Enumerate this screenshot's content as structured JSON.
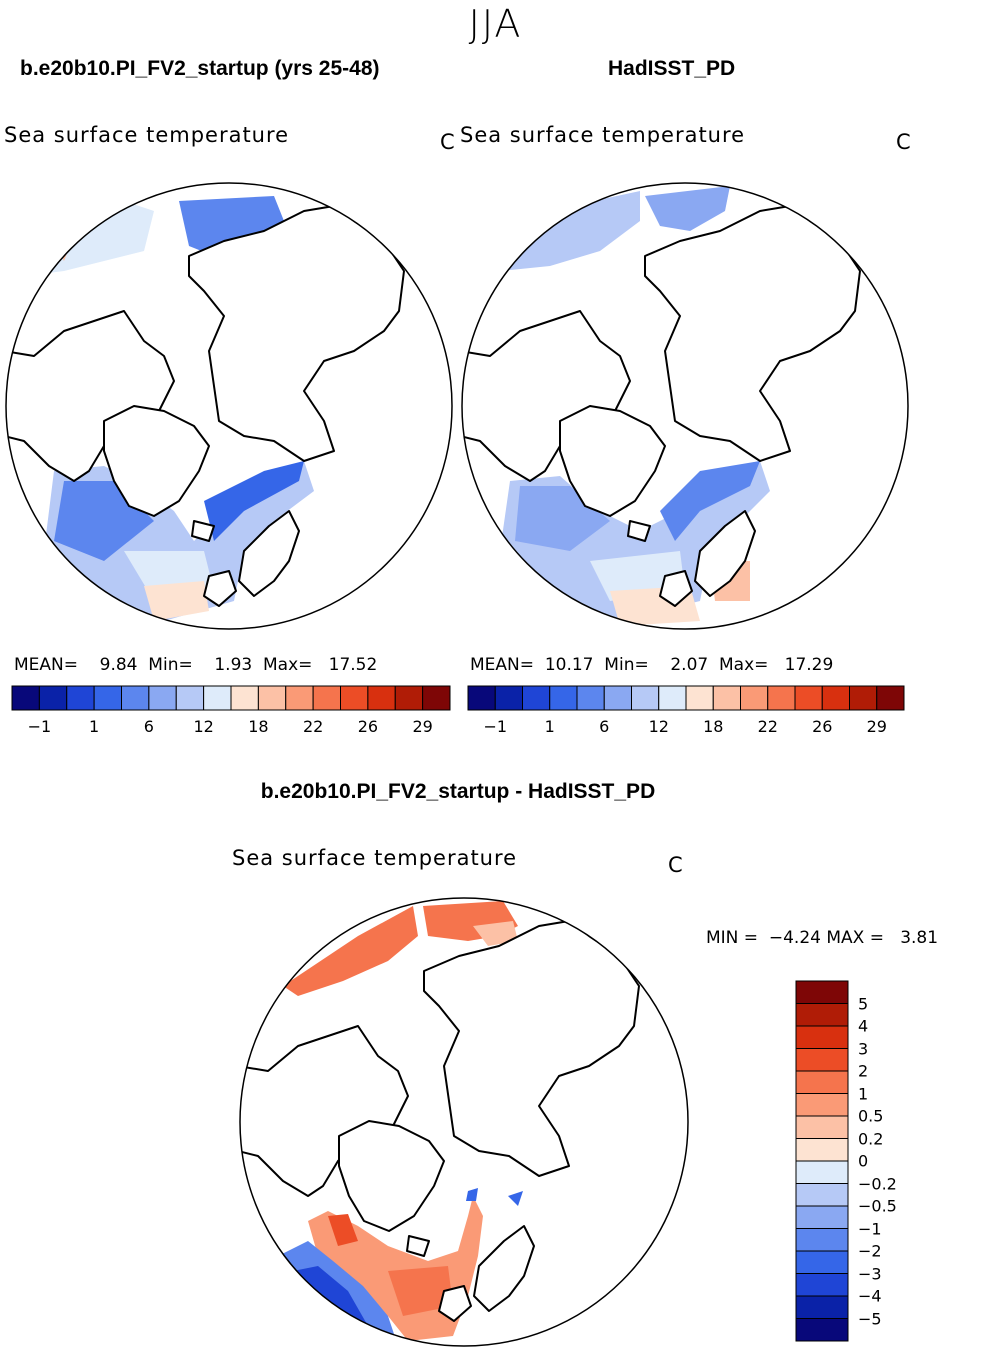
{
  "season": "JJA",
  "panels": [
    {
      "case_title": "b.e20b10.PI_FV2_startup (yrs 25-48)",
      "field": "Sea surface temperature",
      "units": "C",
      "stats": {
        "mean_label": "MEAN=",
        "mean": "9.84",
        "min_label": "Min=",
        "min": "1.93",
        "max_label": "Max=",
        "max": "17.52"
      }
    },
    {
      "case_title": "HadISST_PD",
      "field": "Sea surface temperature",
      "units": "C",
      "stats": {
        "mean_label": "MEAN=",
        "mean": "10.17",
        "min_label": "Min=",
        "min": "2.07",
        "max_label": "Max=",
        "max": "17.29"
      }
    }
  ],
  "horizontal_colorbar": {
    "colors": [
      "#08087a",
      "#0a22a8",
      "#1f45d6",
      "#3566e8",
      "#5c86ee",
      "#8aa8f2",
      "#b6c9f6",
      "#deebfa",
      "#fde3d2",
      "#fcc1a6",
      "#fa9a76",
      "#f5744d",
      "#ec4d26",
      "#d8300f",
      "#b01c06",
      "#7e0606"
    ],
    "tick_labels": [
      "−1",
      "1",
      "6",
      "12",
      "18",
      "22",
      "26",
      "29"
    ]
  },
  "difference": {
    "title": "b.e20b10.PI_FV2_startup - HadISST_PD",
    "field": "Sea surface temperature",
    "units": "C",
    "min_label": "MIN =",
    "min": "−4.24",
    "max_label": "MAX =",
    "max": "3.81",
    "colors": [
      "#7e0606",
      "#b01c06",
      "#d8300f",
      "#ec4d26",
      "#f5744d",
      "#fa9a76",
      "#fcc1a6",
      "#fde3d2",
      "#deebfa",
      "#b6c9f6",
      "#8aa8f2",
      "#5c86ee",
      "#3566e8",
      "#1f45d6",
      "#0a22a8",
      "#08087a"
    ],
    "tick_labels": [
      "5",
      "4",
      "3",
      "2",
      "1",
      "0.5",
      "0.2",
      "0",
      "−0.2",
      "−0.5",
      "−1",
      "−2",
      "−3",
      "−4",
      "−5"
    ]
  }
}
